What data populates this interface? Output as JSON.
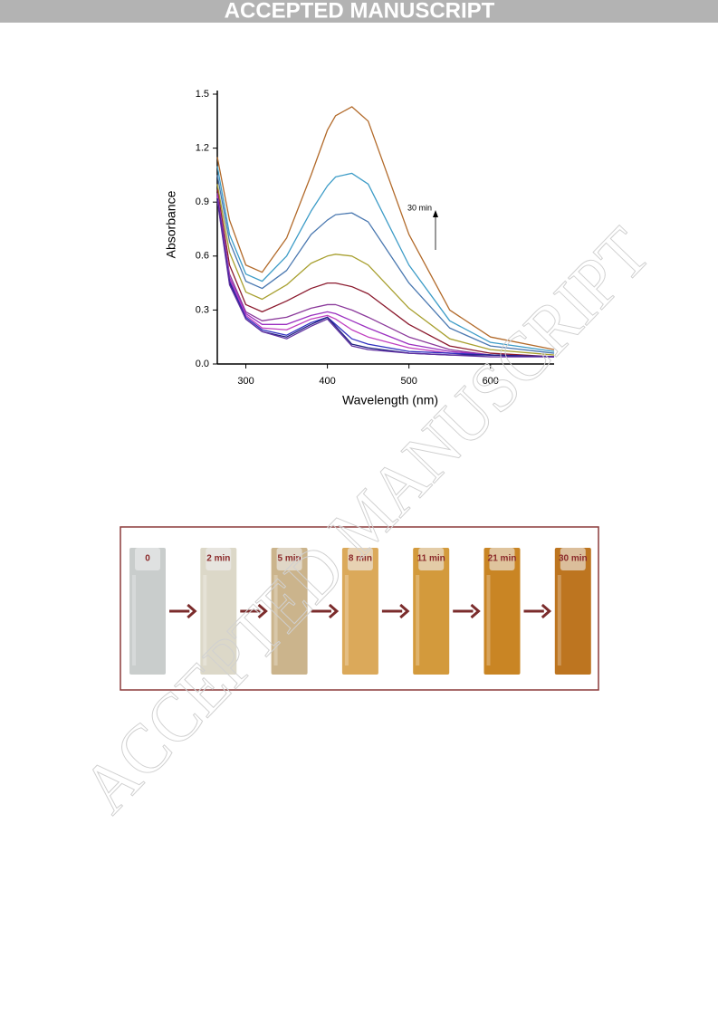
{
  "header": {
    "title": "ACCEPTED MANUSCRIPT"
  },
  "watermark": "ACCEPTED MANUSCRIPT",
  "chart_data": {
    "type": "line",
    "x_label": "Wavelength (nm)",
    "y_label": "Absorbance",
    "annotation": "30 min",
    "x": [
      265,
      280,
      300,
      320,
      350,
      380,
      400,
      410,
      430,
      450,
      500,
      550,
      600,
      678
    ],
    "series": [
      {
        "color": "#b26a2a",
        "values": [
          1.15,
          0.8,
          0.55,
          0.51,
          0.7,
          1.05,
          1.3,
          1.38,
          1.43,
          1.35,
          0.72,
          0.3,
          0.15,
          0.08
        ]
      },
      {
        "color": "#3d9cc7",
        "values": [
          1.1,
          0.72,
          0.5,
          0.46,
          0.6,
          0.85,
          0.99,
          1.04,
          1.06,
          1.0,
          0.55,
          0.24,
          0.12,
          0.07
        ]
      },
      {
        "color": "#4a78b0",
        "values": [
          1.05,
          0.68,
          0.46,
          0.42,
          0.52,
          0.72,
          0.8,
          0.83,
          0.84,
          0.79,
          0.45,
          0.2,
          0.1,
          0.06
        ]
      },
      {
        "color": "#a8a030",
        "values": [
          1.0,
          0.62,
          0.4,
          0.36,
          0.44,
          0.56,
          0.6,
          0.61,
          0.6,
          0.55,
          0.31,
          0.14,
          0.08,
          0.05
        ]
      },
      {
        "color": "#8b1a2e",
        "values": [
          0.97,
          0.55,
          0.33,
          0.29,
          0.35,
          0.42,
          0.45,
          0.45,
          0.43,
          0.39,
          0.22,
          0.1,
          0.06,
          0.04
        ]
      },
      {
        "color": "#8b3a9b",
        "values": [
          0.95,
          0.5,
          0.29,
          0.24,
          0.26,
          0.31,
          0.33,
          0.33,
          0.3,
          0.26,
          0.15,
          0.08,
          0.05,
          0.04
        ]
      },
      {
        "color": "#9b30c0",
        "values": [
          0.94,
          0.48,
          0.28,
          0.22,
          0.22,
          0.27,
          0.29,
          0.28,
          0.24,
          0.2,
          0.11,
          0.07,
          0.05,
          0.04
        ]
      },
      {
        "color": "#c040c0",
        "values": [
          0.93,
          0.47,
          0.27,
          0.2,
          0.19,
          0.25,
          0.27,
          0.25,
          0.19,
          0.15,
          0.09,
          0.06,
          0.05,
          0.04
        ]
      },
      {
        "color": "#3030c0",
        "values": [
          0.92,
          0.46,
          0.26,
          0.19,
          0.16,
          0.23,
          0.26,
          0.22,
          0.14,
          0.11,
          0.07,
          0.06,
          0.05,
          0.04
        ]
      },
      {
        "color": "#202080",
        "values": [
          0.92,
          0.45,
          0.25,
          0.18,
          0.15,
          0.22,
          0.26,
          0.21,
          0.11,
          0.09,
          0.06,
          0.05,
          0.05,
          0.04
        ]
      },
      {
        "color": "#6030a0",
        "values": [
          0.91,
          0.44,
          0.25,
          0.18,
          0.14,
          0.21,
          0.25,
          0.2,
          0.1,
          0.08,
          0.06,
          0.05,
          0.04,
          0.04
        ]
      }
    ],
    "xlim": [
      265,
      678
    ],
    "xticks": [
      300,
      400,
      500,
      600
    ],
    "ylim": [
      0,
      1.5
    ],
    "yticks": [
      {
        "value": 0,
        "label": "0.0"
      },
      0.3,
      0.6,
      0.9,
      1.2,
      1.5
    ]
  },
  "cuvettes": [
    {
      "label": "0",
      "color": "#c9cdcc"
    },
    {
      "label": "2 min",
      "color": "#dcd8c8"
    },
    {
      "label": "5 min",
      "color": "#cbb48c"
    },
    {
      "label": "8 min",
      "color": "#dba95a"
    },
    {
      "label": "11 min",
      "color": "#d39a3c"
    },
    {
      "label": "21 min",
      "color": "#c98524"
    },
    {
      "label": "30 min",
      "color": "#bd7520"
    }
  ]
}
